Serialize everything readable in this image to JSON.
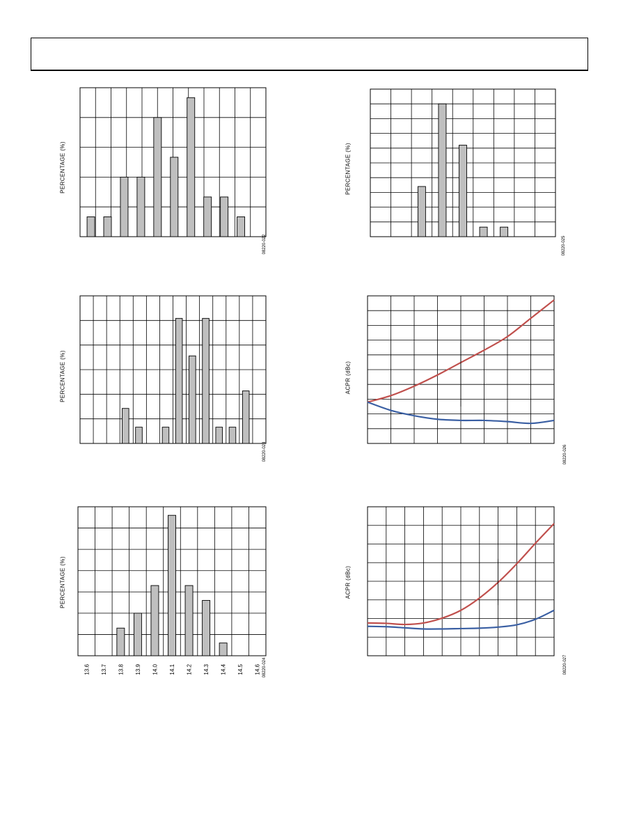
{
  "page": {
    "header": ""
  },
  "charts": [
    {
      "id": "fig22",
      "figure_id": "08220-022",
      "chart_data": {
        "type": "bar",
        "ylabel": "PERCENTAGE (%)",
        "xlabel": "",
        "categories": [
          "",
          "",
          "",
          "",
          "",
          "",
          "",
          "",
          "",
          ""
        ],
        "values": [
          1,
          1,
          3,
          3,
          6,
          4,
          7,
          2,
          2,
          1
        ],
        "ylim": [
          0,
          7.5
        ],
        "y_grid_lines": 5,
        "x_grid_lines": 12,
        "grid": true
      }
    },
    {
      "id": "fig23",
      "figure_id": "08220-023",
      "chart_data": {
        "type": "bar",
        "ylabel": "PERCENTAGE (%)",
        "xlabel": "",
        "categories": [
          "",
          "",
          "",
          "",
          "",
          "",
          "",
          "",
          "",
          "",
          "",
          ""
        ],
        "values": [
          0,
          0,
          1.4,
          0.65,
          0,
          0.65,
          5,
          3.5,
          5,
          0.65,
          0.65,
          2.1
        ],
        "ylim": [
          0,
          5.9
        ],
        "y_grid_lines": 6,
        "x_grid_lines": 14,
        "grid": true
      }
    },
    {
      "id": "fig24",
      "figure_id": "08220-024",
      "chart_data": {
        "type": "bar",
        "ylabel": "PERCENTAGE (%)",
        "xlabel": "",
        "categories": [
          "13.6",
          "13.7",
          "13.8",
          "13.9",
          "14.0",
          "14.1",
          "14.2",
          "14.3",
          "14.4",
          "14.5",
          "14.6"
        ],
        "values": [
          0,
          0,
          1.3,
          2,
          3.3,
          6.6,
          3.3,
          2.6,
          0.6,
          0,
          0
        ],
        "ylim": [
          0,
          7
        ],
        "y_grid_lines": 7,
        "x_grid_lines": 11,
        "grid": true
      }
    },
    {
      "id": "fig25",
      "figure_id": "08220-025",
      "chart_data": {
        "type": "bar",
        "ylabel": "PERCENTAGE (%)",
        "xlabel": "",
        "categories": [
          "",
          "",
          "",
          "",
          "",
          "",
          "",
          "",
          ""
        ],
        "values": [
          0,
          0,
          3.4,
          9,
          6.2,
          0.65,
          0.65,
          0,
          0
        ],
        "ylim": [
          0,
          10
        ],
        "y_grid_lines": 10,
        "x_grid_lines": 9,
        "grid": true
      }
    },
    {
      "id": "fig26",
      "figure_id": "08220-026",
      "chart_data": {
        "type": "line",
        "ylabel": "ACPR (dBc)",
        "xlabel": "",
        "x": [
          0,
          1,
          2,
          3,
          4,
          5,
          6,
          7,
          8
        ],
        "series": [
          {
            "values": [
              -13,
              -11.9,
              -10.3,
              -8.4,
              -6.3,
              -4.2,
              -1.9,
              1.2,
              4.3
            ],
            "color": "#c0504d"
          },
          {
            "values": [
              -13,
              -14.4,
              -15.3,
              -15.9,
              -16.1,
              -16.1,
              -16.3,
              -16.6,
              -16.1
            ],
            "color": "#3a5fa3"
          }
        ],
        "ylim": [
          -20,
          5
        ],
        "xlim": [
          0,
          8
        ],
        "y_grid_lines": 10,
        "x_grid_lines": 8,
        "grid": true
      }
    },
    {
      "id": "fig27",
      "figure_id": "08220-027",
      "chart_data": {
        "type": "line",
        "ylabel": "ACPR (dBc)",
        "xlabel": "",
        "x": [
          0,
          1,
          2,
          3,
          4,
          5,
          6,
          7,
          8,
          9,
          10
        ],
        "series": [
          {
            "values": [
              -11.2,
              -11.3,
              -11.6,
              -11.2,
              -9.9,
              -7.8,
              -4.5,
              -0.3,
              4.7,
              10.2,
              15.5
            ],
            "color": "#c0504d"
          },
          {
            "values": [
              -12.1,
              -12.2,
              -12.5,
              -12.8,
              -12.8,
              -12.7,
              -12.6,
              -12.3,
              -11.7,
              -10.2,
              -7.8
            ],
            "color": "#3a5fa3"
          }
        ],
        "ylim": [
          -20,
          20
        ],
        "xlim": [
          0,
          10
        ],
        "y_grid_lines": 8,
        "x_grid_lines": 10,
        "grid": true
      }
    }
  ]
}
